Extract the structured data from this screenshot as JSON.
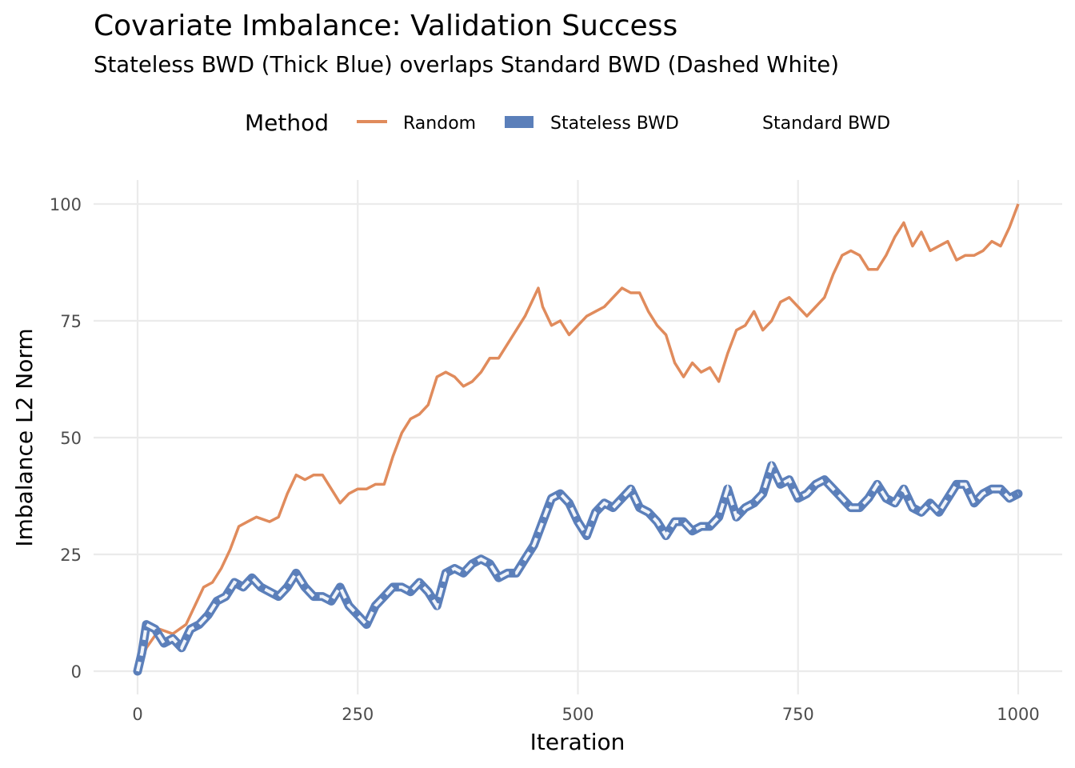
{
  "chart_data": {
    "type": "line",
    "title": "Covariate Imbalance: Validation Success",
    "subtitle": "Stateless BWD (Thick Blue) overlaps Standard BWD (Dashed White)",
    "xlabel": "Iteration",
    "ylabel": "Imbalance L2 Norm",
    "xlim": [
      0,
      1000
    ],
    "ylim": [
      0,
      100
    ],
    "x_ticks": [
      "0",
      "250",
      "500",
      "750",
      "1000"
    ],
    "y_ticks": [
      "0",
      "25",
      "50",
      "75",
      "100"
    ],
    "grid": true,
    "legend": {
      "title": "Method",
      "placement": "top",
      "entries": [
        "Random",
        "Stateless BWD",
        "Standard BWD"
      ]
    },
    "series": [
      {
        "name": "Random",
        "color": "#E08B5C",
        "style": "solid",
        "x": [
          0,
          10,
          25,
          40,
          55,
          65,
          75,
          85,
          95,
          105,
          115,
          125,
          135,
          150,
          160,
          170,
          180,
          190,
          200,
          210,
          220,
          230,
          240,
          250,
          260,
          270,
          280,
          290,
          300,
          310,
          320,
          330,
          340,
          350,
          360,
          370,
          380,
          390,
          400,
          410,
          420,
          430,
          440,
          450,
          455,
          460,
          470,
          480,
          490,
          500,
          510,
          520,
          530,
          540,
          550,
          560,
          570,
          580,
          590,
          600,
          610,
          620,
          630,
          640,
          650,
          660,
          670,
          680,
          690,
          700,
          710,
          720,
          730,
          740,
          750,
          760,
          770,
          780,
          790,
          800,
          810,
          820,
          830,
          840,
          850,
          860,
          870,
          880,
          890,
          900,
          910,
          920,
          930,
          940,
          950,
          960,
          970,
          980,
          990,
          1000
        ],
        "y": [
          0,
          5,
          9,
          8,
          10,
          14,
          18,
          19,
          22,
          26,
          31,
          32,
          33,
          32,
          33,
          38,
          42,
          41,
          42,
          42,
          39,
          36,
          38,
          39,
          39,
          40,
          40,
          46,
          51,
          54,
          55,
          57,
          63,
          64,
          63,
          61,
          62,
          64,
          67,
          67,
          70,
          73,
          76,
          80,
          82,
          78,
          74,
          75,
          72,
          74,
          76,
          77,
          78,
          80,
          82,
          81,
          81,
          77,
          74,
          72,
          66,
          63,
          66,
          64,
          65,
          62,
          68,
          73,
          74,
          77,
          73,
          75,
          79,
          80,
          78,
          76,
          78,
          80,
          85,
          89,
          90,
          89,
          86,
          86,
          89,
          93,
          96,
          91,
          94,
          90,
          91,
          92,
          88,
          89,
          89,
          90,
          92,
          91,
          95,
          100
        ]
      },
      {
        "name": "Stateless BWD",
        "color": "#5B7FBA",
        "style": "thick",
        "x": [
          0,
          5,
          10,
          20,
          30,
          40,
          50,
          60,
          70,
          80,
          90,
          100,
          110,
          120,
          130,
          140,
          150,
          160,
          170,
          180,
          190,
          200,
          210,
          220,
          230,
          240,
          250,
          260,
          270,
          280,
          290,
          300,
          310,
          320,
          330,
          340,
          350,
          360,
          370,
          380,
          390,
          400,
          410,
          420,
          430,
          440,
          450,
          460,
          470,
          480,
          490,
          500,
          510,
          520,
          530,
          540,
          550,
          560,
          570,
          580,
          590,
          600,
          610,
          620,
          630,
          640,
          650,
          660,
          670,
          680,
          690,
          700,
          710,
          720,
          730,
          740,
          750,
          760,
          770,
          780,
          790,
          800,
          810,
          820,
          830,
          840,
          850,
          860,
          870,
          880,
          890,
          900,
          910,
          920,
          930,
          940,
          950,
          960,
          970,
          980,
          990,
          1000
        ],
        "y": [
          0,
          4,
          10,
          9,
          6,
          7,
          5,
          9,
          10,
          12,
          15,
          16,
          19,
          18,
          20,
          18,
          17,
          16,
          18,
          21,
          18,
          16,
          16,
          15,
          18,
          14,
          12,
          10,
          14,
          16,
          18,
          18,
          17,
          19,
          17,
          14,
          21,
          22,
          21,
          23,
          24,
          23,
          20,
          21,
          21,
          24,
          27,
          32,
          37,
          38,
          36,
          32,
          29,
          34,
          36,
          35,
          37,
          39,
          35,
          34,
          32,
          29,
          32,
          32,
          30,
          31,
          31,
          33,
          39,
          33,
          35,
          36,
          38,
          44,
          40,
          41,
          37,
          38,
          40,
          41,
          39,
          37,
          35,
          35,
          37,
          40,
          37,
          36,
          39,
          35,
          34,
          36,
          34,
          37,
          40,
          40,
          36,
          38,
          39,
          39,
          37,
          38
        ]
      },
      {
        "name": "Standard BWD",
        "color": "#F0F4FA",
        "style": "dashed",
        "same_as": "Stateless BWD"
      }
    ]
  }
}
